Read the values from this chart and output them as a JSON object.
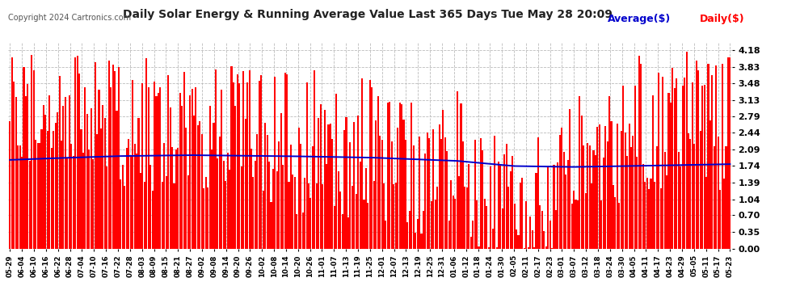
{
  "title": "Daily Solar Energy & Running Average Value Last 365 Days Tue May 28 20:09",
  "copyright": "Copyright 2024 Cartronics.com",
  "avg_label": "Average($)",
  "daily_label": "Daily($)",
  "avg_color": "#0000cc",
  "daily_color": "#ff0000",
  "background_color": "#ffffff",
  "grid_color": "#bbbbbb",
  "yticks": [
    0.0,
    0.35,
    0.7,
    1.04,
    1.39,
    1.74,
    2.09,
    2.44,
    2.79,
    3.13,
    3.48,
    3.83,
    4.18
  ],
  "ylim": [
    0.0,
    4.35
  ],
  "xtick_labels": [
    "05-29",
    "06-04",
    "06-10",
    "06-16",
    "06-22",
    "06-28",
    "07-04",
    "07-10",
    "07-16",
    "07-22",
    "07-28",
    "08-03",
    "08-09",
    "08-15",
    "08-21",
    "08-27",
    "09-02",
    "09-08",
    "09-14",
    "09-20",
    "09-26",
    "10-02",
    "10-08",
    "10-14",
    "10-20",
    "10-26",
    "11-01",
    "11-07",
    "11-13",
    "11-19",
    "11-25",
    "12-01",
    "12-07",
    "12-13",
    "12-19",
    "12-25",
    "12-31",
    "01-06",
    "01-12",
    "01-18",
    "01-24",
    "01-30",
    "02-05",
    "02-11",
    "02-17",
    "02-23",
    "03-01",
    "03-07",
    "03-12",
    "03-18",
    "03-24",
    "03-30",
    "04-05",
    "04-11",
    "04-17",
    "04-23",
    "04-29",
    "05-05",
    "05-11",
    "05-17",
    "05-23"
  ],
  "n_days": 365,
  "seed": 42,
  "avg_knots": [
    0.0,
    0.05,
    0.15,
    0.25,
    0.38,
    0.5,
    0.62,
    0.7,
    0.78,
    0.86,
    1.0
  ],
  "avg_vals": [
    1.87,
    1.9,
    1.95,
    1.97,
    1.95,
    1.92,
    1.85,
    1.74,
    1.72,
    1.74,
    1.78
  ]
}
